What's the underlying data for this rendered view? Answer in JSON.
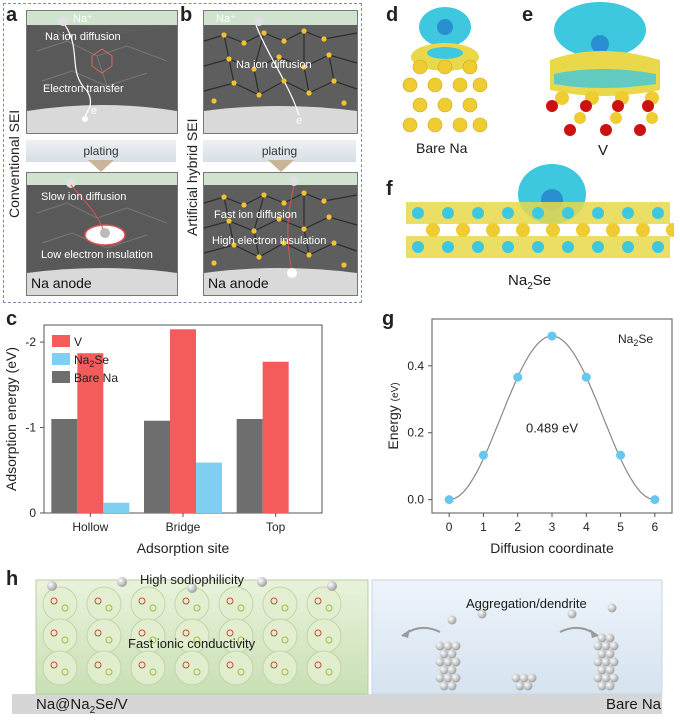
{
  "panel_labels": {
    "a": "a",
    "b": "b",
    "c": "c",
    "d": "d",
    "e": "e",
    "f": "f",
    "g": "g",
    "h": "h"
  },
  "panel_a": {
    "side_label": "Conventional SEI",
    "ion": "Na⁺",
    "text_diffusion": "Na ion diffusion",
    "text_electron": "Electron transfer",
    "electron": "e",
    "plating": "plating",
    "text_slow": "Slow ion diffusion",
    "text_low": "Low electron insulation",
    "anode": "Na anode"
  },
  "panel_b": {
    "side_label": "Artificial hybrid SEI",
    "ion": "Na⁺",
    "text_diffusion": "Na ion diffusion",
    "electron": "e",
    "plating": "plating",
    "text_fast": "Fast ion diffusion",
    "text_high": "High electron insulation",
    "anode": "Na anode"
  },
  "panel_d": {
    "label": "Bare Na"
  },
  "panel_e": {
    "label": "V"
  },
  "panel_f": {
    "label_main": "Na",
    "label_sub": "2",
    "label_tail": "Se"
  },
  "colors": {
    "V": "#f45b5b",
    "Na2Se": "#7fd0f0",
    "BareNa": "#6e6e6e",
    "sphere": "#f0cc33",
    "cyan": "#3ec8e0",
    "oxygen": "#cc1111",
    "curve": "#888888",
    "point": "#66c8ee"
  },
  "chart_data": [
    {
      "type": "bar",
      "panel": "c",
      "xlabel": "Adsorption site",
      "ylabel": "Adsorption energy (eV)",
      "categories": [
        "Hollow",
        "Bridge",
        "Top"
      ],
      "yticks": [
        "-2",
        "-1",
        "0"
      ],
      "ylim": [
        0,
        -2.2
      ],
      "legend_position": "top-left",
      "series": [
        {
          "name": "Bare Na",
          "values": [
            -1.1,
            -1.08,
            -1.1
          ]
        },
        {
          "name": "V",
          "values": [
            -1.87,
            -2.15,
            -1.77
          ]
        },
        {
          "name": "Na2Se",
          "values": [
            -0.12,
            -0.59,
            null
          ]
        }
      ],
      "legend": [
        {
          "name": "V",
          "sub": "",
          "tail": ""
        },
        {
          "name": "Na",
          "sub": "2",
          "tail": "Se"
        },
        {
          "name": "Bare Na",
          "sub": "",
          "tail": ""
        }
      ]
    },
    {
      "type": "line",
      "panel": "g",
      "xlabel": "Diffusion coordinate",
      "ylabel": "Energy (eV)",
      "ylabel_main": "Energy",
      "ylabel_unit": "(eV)",
      "x": [
        0,
        1,
        2,
        3,
        4,
        5,
        6
      ],
      "y": [
        0.0,
        0.133,
        0.366,
        0.489,
        0.366,
        0.133,
        0.0
      ],
      "xticks": [
        "0",
        "1",
        "2",
        "3",
        "4",
        "5",
        "6"
      ],
      "yticks": [
        "0.0",
        "0.2",
        "0.4"
      ],
      "xlim": [
        -0.5,
        6.5
      ],
      "ylim": [
        -0.04,
        0.54
      ],
      "annotation": "0.489 eV",
      "legend": {
        "name": "Na",
        "sub": "2",
        "tail": "Se"
      }
    }
  ],
  "panel_h": {
    "text_sodiophilicity": "High sodiophilicity",
    "text_conductivity": "Fast ionic conductivity",
    "text_aggregation": "Aggregation/dendrite",
    "left_label_a": "Na@Na",
    "left_label_sub": "2",
    "left_label_b": "Se/V",
    "right_label": "Bare Na"
  }
}
